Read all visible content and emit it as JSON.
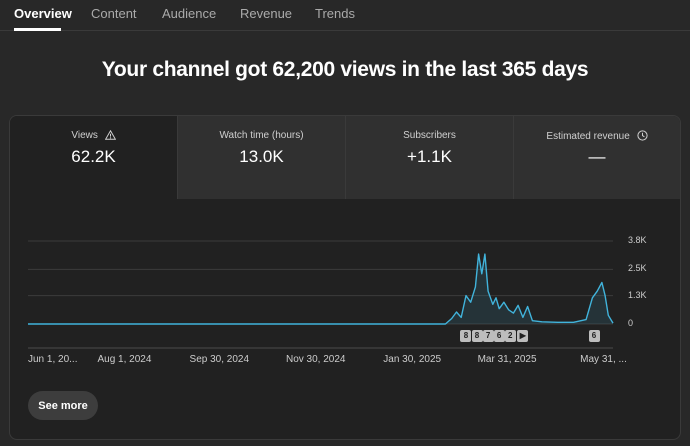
{
  "tabs": [
    {
      "label": "Overview",
      "active": true
    },
    {
      "label": "Content",
      "active": false
    },
    {
      "label": "Audience",
      "active": false
    },
    {
      "label": "Revenue",
      "active": false
    },
    {
      "label": "Trends",
      "active": false
    }
  ],
  "headline": "Your channel got 62,200 views in the last 365 days",
  "metrics": [
    {
      "label": "Views",
      "value": "62.2K",
      "icon": "warning-icon"
    },
    {
      "label": "Watch time (hours)",
      "value": "13.0K"
    },
    {
      "label": "Subscribers",
      "value": "+1.1K"
    },
    {
      "label": "Estimated revenue",
      "value": "—",
      "icon": "clock-icon"
    }
  ],
  "colors": {
    "line": "#41b4dc",
    "accent_bg": "#212121",
    "page_bg": "#282828"
  },
  "chart_data": {
    "type": "area",
    "series": [
      {
        "values": [
          {
            "x": "2025-02-20",
            "y": 0
          },
          {
            "x": "2025-02-24",
            "y": 250
          },
          {
            "x": "2025-02-27",
            "y": 550
          },
          {
            "x": "2025-03-02",
            "y": 300
          },
          {
            "x": "2025-03-05",
            "y": 1300
          },
          {
            "x": "2025-03-08",
            "y": 1000
          },
          {
            "x": "2025-03-11",
            "y": 1700
          },
          {
            "x": "2025-03-13",
            "y": 3200
          },
          {
            "x": "2025-03-15",
            "y": 2300
          },
          {
            "x": "2025-03-17",
            "y": 3200
          },
          {
            "x": "2025-03-19",
            "y": 1500
          },
          {
            "x": "2025-03-22",
            "y": 900
          },
          {
            "x": "2025-03-24",
            "y": 1200
          },
          {
            "x": "2025-03-26",
            "y": 700
          },
          {
            "x": "2025-03-29",
            "y": 1000
          },
          {
            "x": "2025-04-01",
            "y": 650
          },
          {
            "x": "2025-04-04",
            "y": 500
          },
          {
            "x": "2025-04-07",
            "y": 850
          },
          {
            "x": "2025-04-10",
            "y": 300
          },
          {
            "x": "2025-04-13",
            "y": 800
          },
          {
            "x": "2025-04-16",
            "y": 150
          },
          {
            "x": "2025-04-22",
            "y": 100
          },
          {
            "x": "2025-05-02",
            "y": 80
          },
          {
            "x": "2025-05-12",
            "y": 80
          },
          {
            "x": "2025-05-20",
            "y": 200
          },
          {
            "x": "2025-05-24",
            "y": 1200
          },
          {
            "x": "2025-05-27",
            "y": 1500
          },
          {
            "x": "2025-05-30",
            "y": 1900
          },
          {
            "x": "2025-06-01",
            "y": 1300
          },
          {
            "x": "2025-06-03",
            "y": 400
          },
          {
            "x": "2025-06-06",
            "y": 40
          }
        ]
      }
    ],
    "x_range": [
      "2024-06-01",
      "2025-06-06"
    ],
    "ylim": [
      0,
      3800
    ],
    "y_ticks": [
      {
        "label": "3.8K",
        "value": 3800
      },
      {
        "label": "2.5K",
        "value": 2500
      },
      {
        "label": "1.3K",
        "value": 1300
      },
      {
        "label": "0",
        "value": 0
      }
    ],
    "x_ticks": [
      {
        "label": "Jun 1, 20...",
        "date": "2024-06-01"
      },
      {
        "label": "Aug 1, 2024",
        "date": "2024-08-01"
      },
      {
        "label": "Sep 30, 2024",
        "date": "2024-09-30"
      },
      {
        "label": "Nov 30, 2024",
        "date": "2024-11-30"
      },
      {
        "label": "Jan 30, 2025",
        "date": "2025-01-30"
      },
      {
        "label": "Mar 31, 2025",
        "date": "2025-03-31"
      },
      {
        "label": "May 31, ...",
        "date": "2025-05-31"
      }
    ],
    "markers": [
      {
        "label": "8",
        "date": "2025-03-05"
      },
      {
        "label": "8",
        "date": "2025-03-12"
      },
      {
        "label": "7",
        "date": "2025-03-19"
      },
      {
        "label": "6",
        "date": "2025-03-26"
      },
      {
        "label": "2",
        "date": "2025-04-02"
      },
      {
        "label": "▶",
        "date": "2025-04-10"
      },
      {
        "label": "6",
        "date": "2025-05-25"
      }
    ],
    "grid": true
  },
  "see_more_label": "See more"
}
